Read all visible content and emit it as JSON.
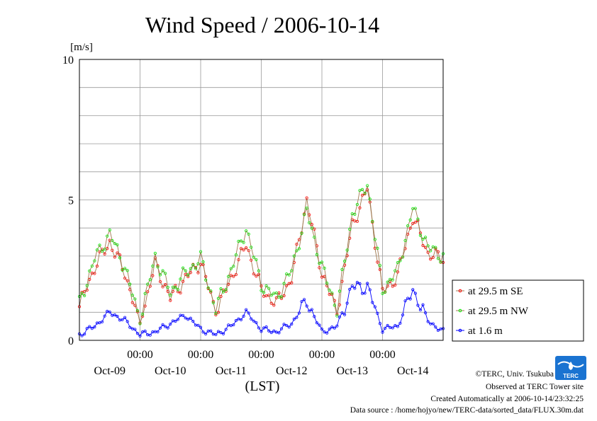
{
  "chart_data": {
    "type": "line",
    "title": "Wind Speed / 2006-10-14",
    "ylabel": "[m/s]",
    "xlabel": "(LST)",
    "ylim": [
      0,
      10
    ],
    "y_ticks": [
      "0",
      "5",
      "10"
    ],
    "x_range_hours": [
      0,
      144
    ],
    "x_hour_ticks": [
      "00:00",
      "00:00",
      "00:00",
      "00:00",
      "00:00"
    ],
    "x_day_labels": [
      "Oct-09",
      "Oct-10",
      "Oct-11",
      "Oct-12",
      "Oct-13",
      "Oct-14"
    ],
    "grid": true,
    "legend_position": "right",
    "series": [
      {
        "name": "at 29.5 m SE",
        "color": "#ff0000",
        "line_color": "#a07850",
        "x": [
          0,
          6,
          12,
          18,
          24,
          30,
          36,
          42,
          48,
          54,
          60,
          66,
          72,
          78,
          84,
          90,
          96,
          102,
          108,
          114,
          120,
          126,
          132,
          138,
          144
        ],
        "values": [
          1.2,
          2.6,
          3.5,
          2.4,
          0.6,
          2.7,
          1.5,
          2.2,
          2.8,
          1.0,
          2.2,
          3.4,
          1.8,
          1.3,
          2.2,
          5.0,
          2.4,
          1.0,
          4.1,
          5.4,
          1.7,
          2.3,
          4.4,
          3.1,
          2.9
        ]
      },
      {
        "name": "at 29.5 m NW",
        "color": "#00ee00",
        "line_color": "#a07850",
        "x": [
          0,
          6,
          12,
          18,
          24,
          30,
          36,
          42,
          48,
          54,
          60,
          66,
          72,
          78,
          84,
          90,
          96,
          102,
          108,
          114,
          120,
          126,
          132,
          138,
          144
        ],
        "values": [
          1.3,
          2.9,
          3.8,
          2.6,
          0.7,
          3.0,
          1.7,
          2.4,
          2.9,
          1.1,
          2.5,
          4.0,
          2.0,
          1.5,
          2.5,
          4.6,
          2.6,
          1.1,
          4.5,
          5.6,
          1.8,
          2.5,
          4.7,
          3.3,
          3.0
        ]
      },
      {
        "name": "at 1.6 m",
        "color": "#0000ff",
        "line_color": "#0000ff",
        "x": [
          0,
          6,
          12,
          18,
          24,
          30,
          36,
          42,
          48,
          54,
          60,
          66,
          72,
          78,
          84,
          90,
          96,
          102,
          108,
          114,
          120,
          126,
          132,
          138,
          144
        ],
        "values": [
          0.2,
          0.5,
          1.0,
          0.7,
          0.2,
          0.3,
          0.6,
          0.9,
          0.4,
          0.2,
          0.5,
          1.0,
          0.4,
          0.3,
          0.6,
          1.4,
          0.3,
          0.5,
          1.9,
          1.9,
          0.4,
          0.5,
          1.8,
          0.7,
          0.3
        ]
      }
    ]
  },
  "footer": {
    "copyright": "©TERC, Univ. Tsukuba",
    "observed": "Observed at TERC Tower site",
    "created": "Created Automatically at 2006-10-14/23:32:25",
    "source": "Data source : /home/hojyo/new/TERC-data/sorted_data/FLUX.30m.dat"
  },
  "logo": {
    "text": "TERC",
    "color": "#1a73d1"
  }
}
